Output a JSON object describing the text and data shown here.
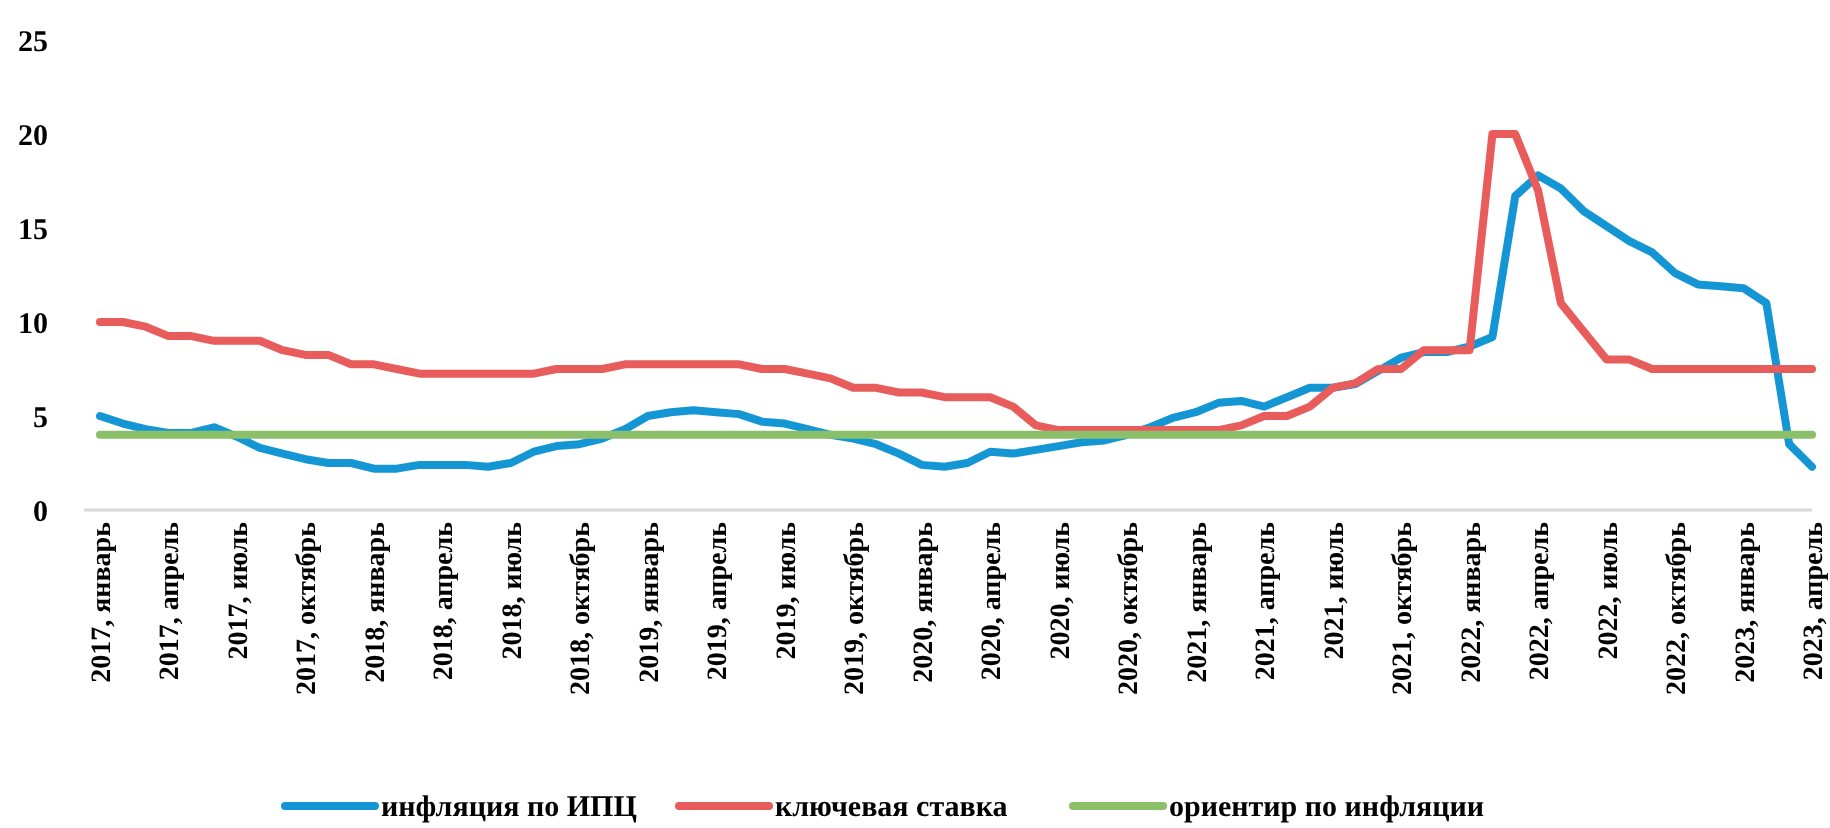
{
  "chart_data": {
    "type": "line",
    "categories": [
      "2017, январь",
      null,
      null,
      "2017, апрель",
      null,
      null,
      "2017, июль",
      null,
      null,
      "2017, октябрь",
      null,
      null,
      "2018, январь",
      null,
      null,
      "2018, апрель",
      null,
      null,
      "2018, июль",
      null,
      null,
      "2018, октябрь",
      null,
      null,
      "2019, январь",
      null,
      null,
      "2019, апрель",
      null,
      null,
      "2019, июль",
      null,
      null,
      "2019, октябрь",
      null,
      null,
      "2020, январь",
      null,
      null,
      "2020, апрель",
      null,
      null,
      "2020, июль",
      null,
      null,
      "2020, октябрь",
      null,
      null,
      "2021, январь",
      null,
      null,
      "2021, апрель",
      null,
      null,
      "2021, июль",
      null,
      null,
      "2021, октябрь",
      null,
      null,
      "2022, январь",
      null,
      null,
      "2022, апрель",
      null,
      null,
      "2022, июль",
      null,
      null,
      "2022, октябрь",
      null,
      null,
      "2023, январь",
      null,
      null,
      "2023, апрель"
    ],
    "series": [
      {
        "name": "инфляция по ИПЦ",
        "color": "#1496d4",
        "values": [
          5.0,
          4.6,
          4.3,
          4.1,
          4.1,
          4.4,
          3.9,
          3.3,
          3.0,
          2.7,
          2.5,
          2.5,
          2.2,
          2.2,
          2.4,
          2.4,
          2.4,
          2.3,
          2.5,
          3.1,
          3.4,
          3.5,
          3.8,
          4.3,
          5.0,
          5.2,
          5.3,
          5.2,
          5.1,
          4.7,
          4.6,
          4.3,
          4.0,
          3.8,
          3.5,
          3.0,
          2.4,
          2.3,
          2.5,
          3.1,
          3.0,
          3.2,
          3.4,
          3.6,
          3.7,
          4.0,
          4.4,
          4.9,
          5.2,
          5.7,
          5.8,
          5.5,
          6.0,
          6.5,
          6.5,
          6.7,
          7.4,
          8.1,
          8.4,
          8.4,
          8.7,
          9.2,
          16.7,
          17.8,
          17.1,
          15.9,
          15.1,
          14.3,
          13.7,
          12.6,
          12.0,
          11.9,
          11.8,
          11.0,
          3.5,
          2.3
        ]
      },
      {
        "name": "ключевая ставка",
        "color": "#e85c5c",
        "values": [
          10,
          10,
          9.75,
          9.25,
          9.25,
          9,
          9,
          9,
          8.5,
          8.25,
          8.25,
          7.75,
          7.75,
          7.5,
          7.25,
          7.25,
          7.25,
          7.25,
          7.25,
          7.25,
          7.5,
          7.5,
          7.5,
          7.75,
          7.75,
          7.75,
          7.75,
          7.75,
          7.75,
          7.5,
          7.5,
          7.25,
          7,
          6.5,
          6.5,
          6.25,
          6.25,
          6,
          6,
          6,
          5.5,
          4.5,
          4.25,
          4.25,
          4.25,
          4.25,
          4.25,
          4.25,
          4.25,
          4.25,
          4.5,
          5,
          5,
          5.5,
          6.5,
          6.75,
          7.5,
          7.5,
          8.5,
          8.5,
          8.5,
          20,
          20,
          17,
          11,
          9.5,
          8,
          8,
          7.5,
          7.5,
          7.5,
          7.5,
          7.5,
          7.5,
          7.5,
          7.5
        ]
      },
      {
        "name": "ориентир по инфляции",
        "color": "#8cbf6a",
        "values": [
          4,
          4,
          4,
          4,
          4,
          4,
          4,
          4,
          4,
          4,
          4,
          4,
          4,
          4,
          4,
          4,
          4,
          4,
          4,
          4,
          4,
          4,
          4,
          4,
          4,
          4,
          4,
          4,
          4,
          4,
          4,
          4,
          4,
          4,
          4,
          4,
          4,
          4,
          4,
          4,
          4,
          4,
          4,
          4,
          4,
          4,
          4,
          4,
          4,
          4,
          4,
          4,
          4,
          4,
          4,
          4,
          4,
          4,
          4,
          4,
          4,
          4,
          4,
          4,
          4,
          4,
          4,
          4,
          4,
          4,
          4,
          4,
          4,
          4,
          4,
          4
        ]
      }
    ],
    "ylim": [
      0,
      25
    ],
    "yticks": [
      0,
      5,
      10,
      15,
      20,
      25
    ],
    "legend": "bottom"
  }
}
